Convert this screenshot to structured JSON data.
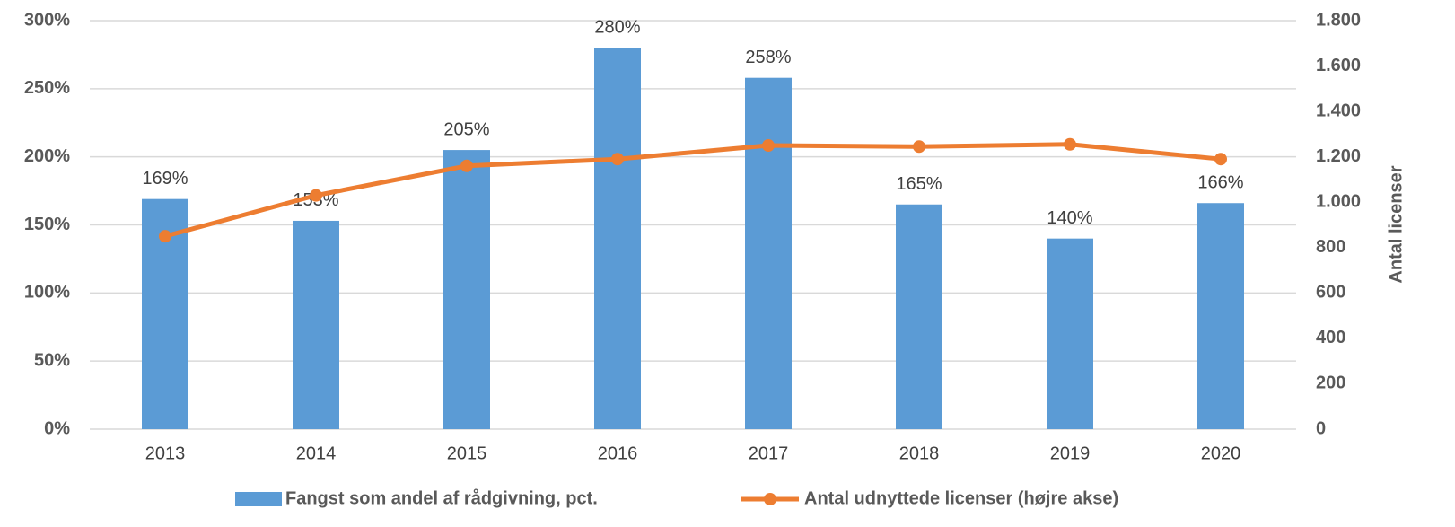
{
  "chart_data": {
    "type": "bar+line",
    "categories": [
      "2013",
      "2014",
      "2015",
      "2016",
      "2017",
      "2018",
      "2019",
      "2020"
    ],
    "series": [
      {
        "name": "Fangst som andel af rådgivning, pct.",
        "type": "bar",
        "color": "#5b9bd5",
        "values": [
          169,
          153,
          205,
          280,
          258,
          165,
          140,
          166
        ],
        "value_labels": [
          "169%",
          "153%",
          "205%",
          "280%",
          "258%",
          "165%",
          "140%",
          "166%"
        ]
      },
      {
        "name": "Antal udnyttede licenser (højre akse)",
        "type": "line",
        "color": "#ed7d31",
        "axis": "y2",
        "values": [
          850,
          1030,
          1160,
          1190,
          1250,
          1245,
          1255,
          1190
        ]
      }
    ],
    "ylim": [
      0,
      300
    ],
    "yticks": [
      {
        "value": 0,
        "label": "0%"
      },
      {
        "value": 50,
        "label": "50%"
      },
      {
        "value": 100,
        "label": "100%"
      },
      {
        "value": 150,
        "label": "150%"
      },
      {
        "value": 200,
        "label": "200%"
      },
      {
        "value": 250,
        "label": "250%"
      },
      {
        "value": 300,
        "label": "300%"
      }
    ],
    "y2lim": [
      0,
      1800
    ],
    "y2ticks": [
      0,
      200,
      400,
      600,
      800,
      {
        "value": 1000,
        "label": "1.000"
      },
      {
        "value": 1200,
        "label": "1.200"
      },
      {
        "value": 1400,
        "label": "1.400"
      },
      {
        "value": 1600,
        "label": "1.600"
      },
      {
        "value": 1800,
        "label": "1.800"
      }
    ],
    "y2label": "Antal licenser",
    "grid": true,
    "legend": "bottom"
  }
}
